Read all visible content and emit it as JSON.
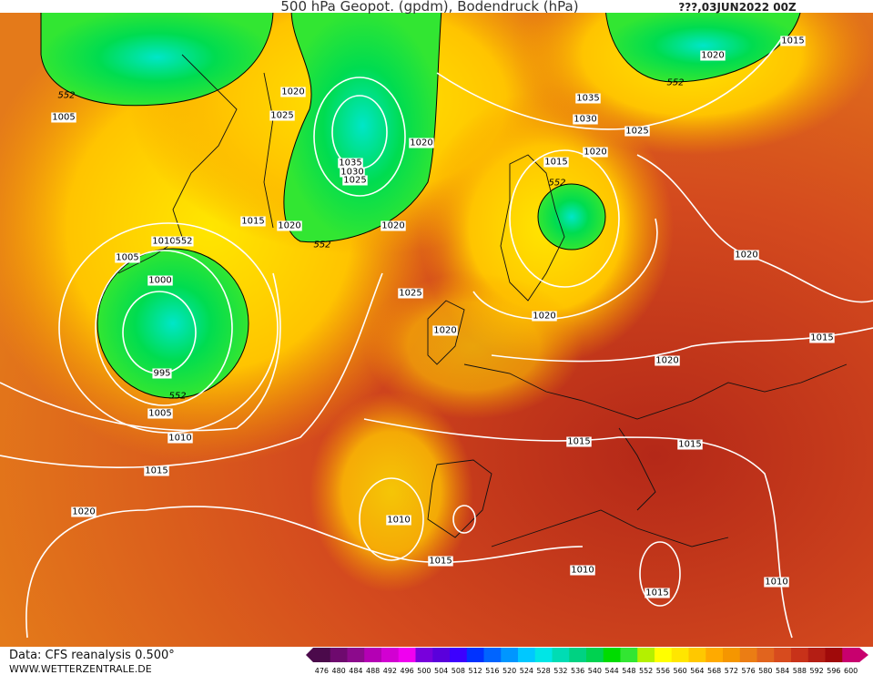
{
  "header": {
    "title": "500 hPa Geopot. (gpdm), Bodendruck (hPa)",
    "date": "???,03JUN2022 00Z"
  },
  "footer": {
    "source": "Data: CFS reanalysis 0.500°",
    "site": "WWW.WETTERZENTRALE.DE"
  },
  "contour_labels": [
    552,
    1005,
    1020,
    1025,
    1020,
    1035,
    1030,
    1025,
    1015,
    1020,
    552,
    1020,
    1010,
    552,
    1005,
    1000,
    995,
    552,
    1005,
    1010,
    1015,
    1020,
    1025,
    1020,
    1020,
    1015,
    552,
    1035,
    1030,
    1025,
    1020,
    1020,
    552,
    1015,
    1020,
    1015,
    1020,
    1015,
    1015,
    1010,
    1015,
    1010,
    1015,
    1010
  ],
  "legend": {
    "levels": [
      476,
      480,
      484,
      488,
      492,
      496,
      500,
      504,
      508,
      512,
      516,
      520,
      524,
      528,
      532,
      536,
      540,
      544,
      548,
      552,
      556,
      560,
      564,
      568,
      572,
      576,
      580,
      584,
      588,
      592,
      596,
      600
    ],
    "colors": [
      "#4b0a4b",
      "#6e0a6e",
      "#8c0a8c",
      "#b400b4",
      "#d200d2",
      "#f000f0",
      "#7800dc",
      "#5a00dc",
      "#3c00ff",
      "#0032ff",
      "#0064ff",
      "#0096ff",
      "#00c8ff",
      "#00e6e6",
      "#00dcb4",
      "#00d282",
      "#00d250",
      "#00dc00",
      "#32e632",
      "#b4f000",
      "#ffff00",
      "#ffe600",
      "#ffc800",
      "#ffaa00",
      "#f59600",
      "#eb7d14",
      "#e1641e",
      "#d74b1e",
      "#c83219",
      "#b41e14",
      "#a00a0a",
      "#c8006e"
    ]
  }
}
